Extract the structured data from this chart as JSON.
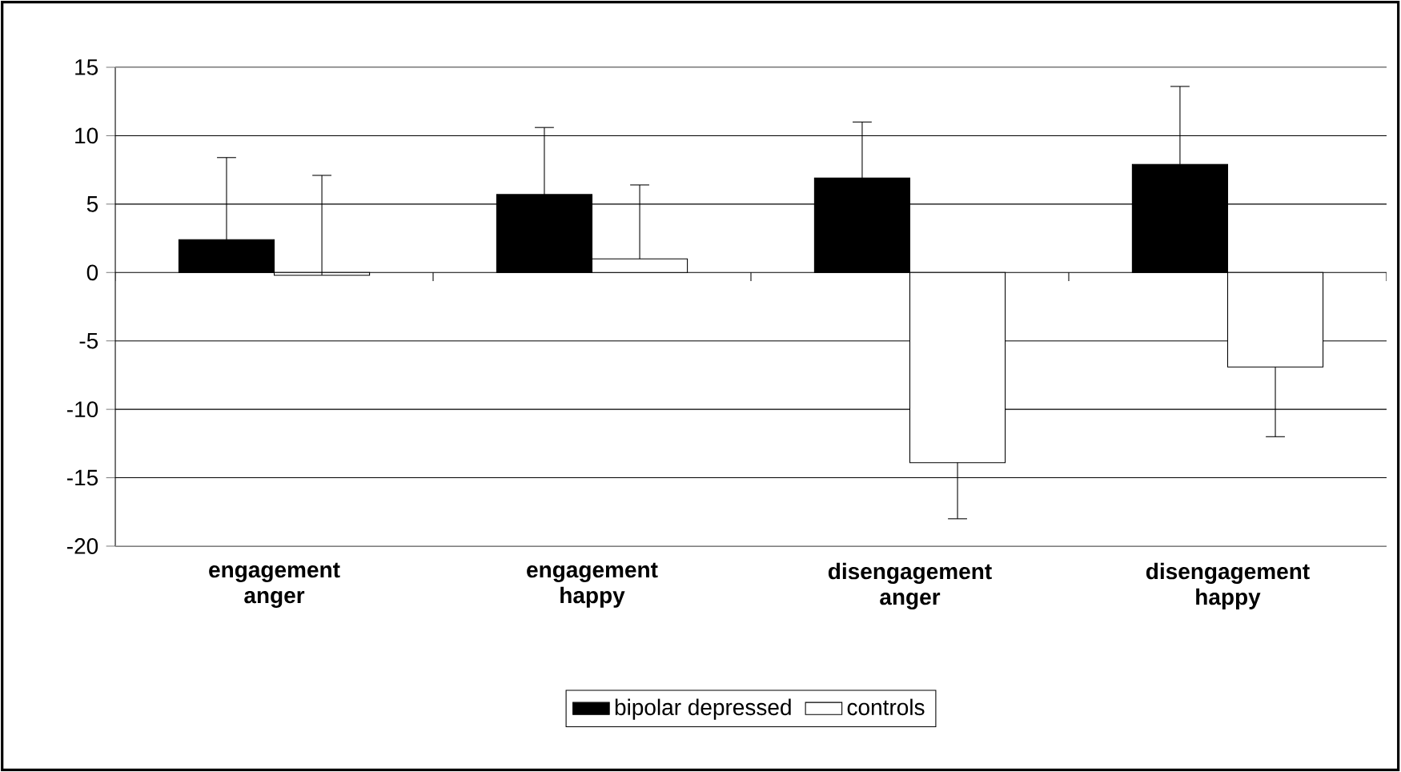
{
  "chart_data": {
    "type": "bar",
    "categories": [
      "engagement anger",
      "engagement happy",
      "disengagement anger",
      "disengagement happy"
    ],
    "series": [
      {
        "name": "bipolar depressed",
        "color": "#000000",
        "values": [
          2.4,
          5.7,
          6.9,
          7.9
        ],
        "errors": [
          [
            2.4,
            8.4
          ],
          [
            5.7,
            10.6
          ],
          [
            6.9,
            11.0
          ],
          [
            7.9,
            13.6
          ]
        ]
      },
      {
        "name": "controls",
        "color": "#ffffff",
        "values": [
          -0.2,
          1.0,
          -13.9,
          -6.9
        ],
        "errors": [
          [
            -0.2,
            7.1
          ],
          [
            1.0,
            6.4
          ],
          [
            -18.0,
            -13.9
          ],
          [
            -12.0,
            -6.9
          ]
        ]
      }
    ],
    "ylim": [
      -20,
      15
    ],
    "yticks": [
      -20,
      -15,
      -10,
      -5,
      0,
      5,
      10,
      15
    ],
    "grid": "y",
    "legend": "bottom"
  }
}
